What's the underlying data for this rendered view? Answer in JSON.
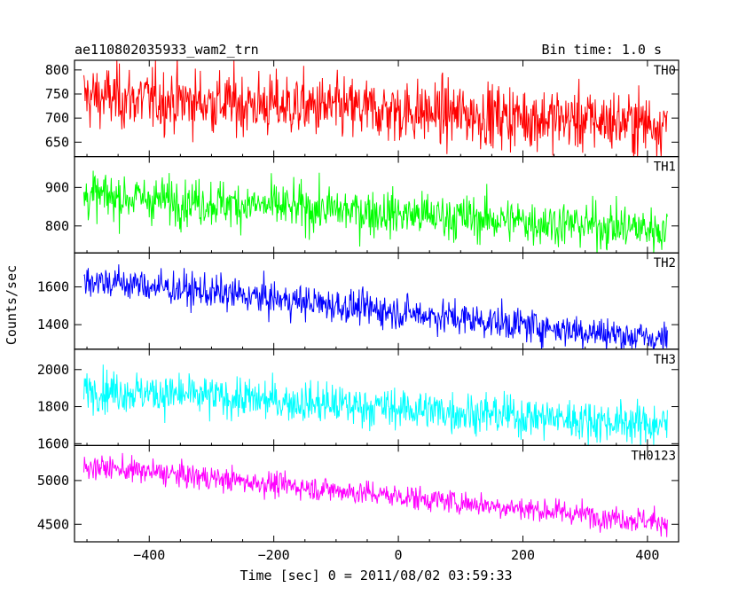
{
  "chart_data": {
    "type": "line",
    "title": "ae110802035933_wam2_trn",
    "bin_time_label": "Bin time: 1.0 s",
    "xlabel": "Time [sec] 0 = 2011/08/02 03:59:33",
    "ylabel": "Counts/sec",
    "xlim": [
      -520,
      450
    ],
    "x_ticks": [
      -400,
      -200,
      0,
      200,
      400
    ],
    "x_tick_labels": [
      "−400",
      "−200",
      "0",
      "200",
      "400"
    ],
    "x_range_data": [
      -505,
      432
    ],
    "bin_size": 1.0,
    "panels": [
      {
        "name": "TH0",
        "color": "#ff0000",
        "ylim": [
          620,
          820
        ],
        "yticks": [
          650,
          700,
          750,
          800
        ],
        "start_mean": 745,
        "end_mean": 688,
        "noise_sd": 33
      },
      {
        "name": "TH1",
        "color": "#00ff00",
        "ylim": [
          730,
          980
        ],
        "yticks": [
          800,
          900
        ],
        "start_mean": 880,
        "end_mean": 790,
        "noise_sd": 30
      },
      {
        "name": "TH2",
        "color": "#0000ff",
        "ylim": [
          1270,
          1780
        ],
        "yticks": [
          1400,
          1600
        ],
        "start_mean": 1640,
        "end_mean": 1320,
        "noise_sd": 45
      },
      {
        "name": "TH3",
        "color": "#00ffff",
        "ylim": [
          1590,
          2110
        ],
        "yticks": [
          1600,
          1800,
          2000
        ],
        "start_mean": 1895,
        "end_mean": 1700,
        "noise_sd": 55
      },
      {
        "name": "TH0123",
        "color": "#ff00ff",
        "ylim": [
          4300,
          5400
        ],
        "yticks": [
          4500,
          5000
        ],
        "start_mean": 5170,
        "end_mean": 4520,
        "noise_sd": 70
      }
    ]
  }
}
